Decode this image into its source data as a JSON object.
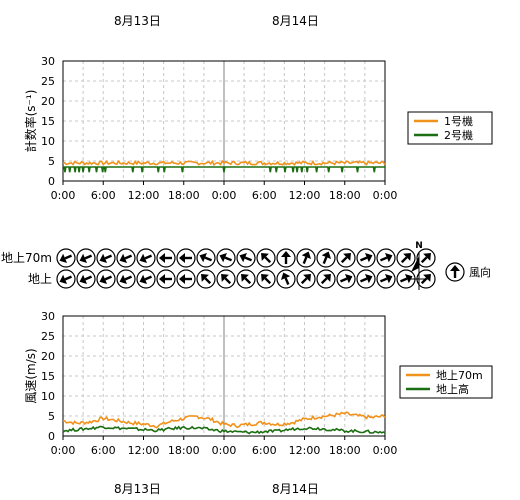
{
  "date_labels": {
    "top": [
      "8月13日",
      "8月14日"
    ],
    "bottom": [
      "8月13日",
      "8月14日"
    ]
  },
  "time_ticks": [
    "0:00",
    "6:00",
    "12:00",
    "18:00",
    "0:00",
    "6:00",
    "12:00",
    "18:00",
    "0:00"
  ],
  "wind_rows": [
    {
      "label": "地上70m",
      "directions_deg": [
        247,
        247,
        247,
        247,
        247,
        270,
        270,
        292,
        292,
        292,
        315,
        0,
        22,
        22,
        45,
        67,
        67,
        45,
        45
      ]
    },
    {
      "label": "地上",
      "directions_deg": [
        247,
        247,
        247,
        247,
        247,
        270,
        270,
        315,
        315,
        315,
        315,
        337,
        45,
        45,
        67,
        67,
        67,
        67,
        45
      ]
    }
  ],
  "compass": {
    "north": "N"
  },
  "wind_legend": {
    "label": "風向",
    "sample_deg": 0
  },
  "chart_data": [
    {
      "type": "line",
      "ylabel": "計数率(s⁻¹)",
      "ylim": [
        0,
        30
      ],
      "yticks": [
        0,
        5,
        10,
        15,
        20,
        25,
        30
      ],
      "xlim_hours": [
        0,
        48
      ],
      "grid": true,
      "legend_position": "right",
      "series": [
        {
          "name": "1号機",
          "color": "#f0921c",
          "x_hours": [
            0,
            48
          ],
          "values": [
            4.5,
            4.5
          ]
        },
        {
          "name": "2号機",
          "color": "#1c6e12",
          "x_hours": [
            0,
            48
          ],
          "values": [
            3.5,
            3.5
          ],
          "dips_hours": [
            0.3,
            1.0,
            1.8,
            2.4,
            3.0,
            3.9,
            5.0,
            5.9,
            6.3,
            10.4,
            11.8,
            14.2,
            15.1,
            17.8,
            24.0,
            30.9,
            31.8,
            33.1,
            34.3,
            34.9,
            35.6,
            36.4,
            37.8,
            39.6,
            41.6,
            43.9,
            46.4
          ],
          "dip_value": 2.2
        }
      ]
    },
    {
      "type": "line",
      "ylabel": "風速(m/s)",
      "ylim": [
        0,
        30
      ],
      "yticks": [
        0,
        5,
        10,
        15,
        20,
        25,
        30
      ],
      "xlim_hours": [
        0,
        48
      ],
      "grid": true,
      "legend_position": "right",
      "series": [
        {
          "name": "地上70m",
          "color": "#f0921c",
          "x_hours": [
            0,
            2,
            4,
            6,
            8,
            10,
            12,
            14,
            16,
            18,
            20,
            22,
            24,
            26,
            28,
            30,
            32,
            34,
            36,
            38,
            40,
            42,
            44,
            46,
            48
          ],
          "values": [
            3.8,
            3.2,
            3.5,
            4.4,
            3.9,
            3.3,
            3.0,
            2.5,
            3.6,
            4.4,
            4.9,
            4.2,
            2.9,
            2.6,
            3.0,
            3.4,
            2.9,
            3.3,
            4.2,
            4.8,
            5.1,
            5.6,
            5.0,
            4.6,
            5.0
          ]
        },
        {
          "name": "地上高",
          "color": "#1c6e12",
          "x_hours": [
            0,
            2,
            4,
            6,
            8,
            10,
            12,
            14,
            16,
            18,
            20,
            22,
            24,
            26,
            28,
            30,
            32,
            34,
            36,
            38,
            40,
            42,
            44,
            46,
            48
          ],
          "values": [
            1.3,
            1.6,
            1.9,
            2.3,
            2.0,
            1.8,
            1.6,
            1.4,
            1.8,
            2.1,
            2.0,
            1.6,
            1.2,
            1.0,
            0.9,
            1.1,
            1.2,
            1.7,
            2.0,
            1.9,
            1.6,
            1.3,
            1.2,
            1.0,
            0.9
          ]
        }
      ]
    }
  ]
}
